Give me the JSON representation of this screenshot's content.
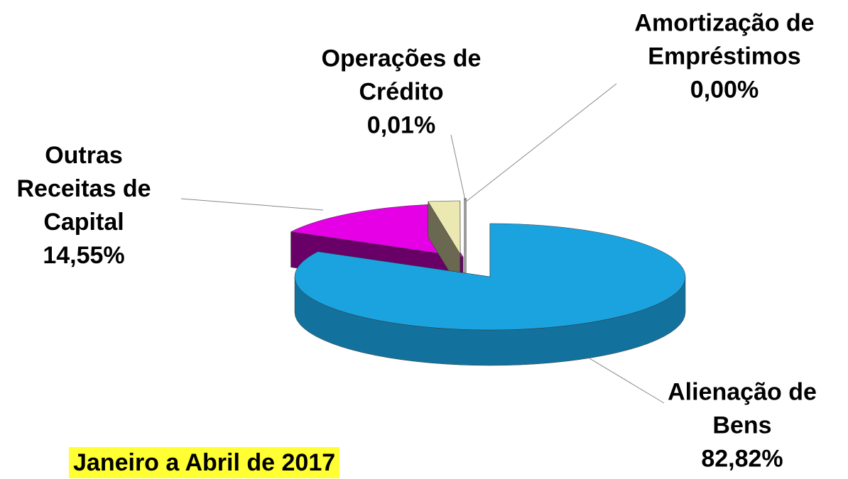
{
  "chart_data": {
    "type": "pie3d",
    "title": "Janeiro a Abril de 2017",
    "categories": [
      "Alienação de Bens",
      "Outras Receitas de Capital",
      null,
      "Operações de Crédito",
      "Amortização de Empréstimos"
    ],
    "values": [
      82.82,
      14.55,
      2.62,
      0.01,
      0.0
    ],
    "value_labels": [
      "82,82%",
      "14,55%",
      null,
      "0,01%",
      "0,00%"
    ],
    "colors": [
      "#1ba3e0",
      "#e600e6",
      "#ece8b2",
      "#c9c9c9",
      "#c9c9c9"
    ]
  }
}
